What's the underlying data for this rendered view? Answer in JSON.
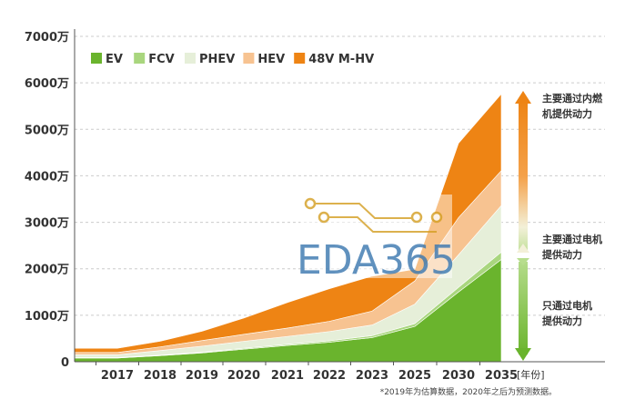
{
  "chart_data": {
    "type": "area",
    "stacked": true,
    "x_labels": [
      "",
      "2017",
      "2018",
      "2019",
      "2020",
      "2021",
      "2022",
      "2023",
      "2025",
      "2030",
      "2035"
    ],
    "x_unit": "[年份]",
    "y_ticks": [
      "0",
      "1000万",
      "2000万",
      "3000万",
      "4000万",
      "5000万",
      "6000万",
      "7000万"
    ],
    "ylim": [
      0,
      7000
    ],
    "series": [
      {
        "name": "EV",
        "color": "#6ab42d",
        "values": [
          80,
          80,
          130,
          190,
          270,
          350,
          420,
          520,
          760,
          1500,
          2200
        ]
      },
      {
        "name": "FCV",
        "color": "#a9d67e",
        "values": [
          10,
          10,
          10,
          15,
          20,
          25,
          30,
          40,
          60,
          100,
          160
        ]
      },
      {
        "name": "PHEV",
        "color": "#e6efd9",
        "values": [
          60,
          60,
          100,
          130,
          150,
          170,
          200,
          230,
          420,
          700,
          1000
        ]
      },
      {
        "name": "HEV",
        "color": "#f7c391",
        "values": [
          50,
          50,
          80,
          120,
          150,
          180,
          220,
          300,
          500,
          800,
          750
        ]
      },
      {
        "name": "48V M-HV",
        "color": "#ee8414",
        "values": [
          90,
          90,
          120,
          200,
          350,
          550,
          700,
          750,
          250,
          1600,
          1650
        ]
      }
    ],
    "grid": true,
    "legend_position": "top-left",
    "annotations": [
      "主要通过内燃",
      "机提供动力",
      "主要通过电机",
      "提供动力",
      "只通过电机",
      "提供动力"
    ],
    "footnote": "*2019年为估算数据，2020年之后为预测数据。"
  },
  "watermark": {
    "text": "EDA365"
  }
}
